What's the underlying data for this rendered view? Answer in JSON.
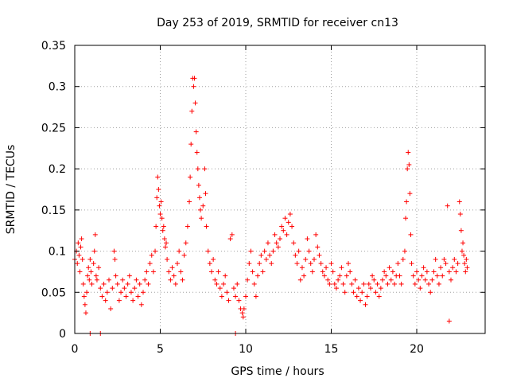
{
  "chart_data": {
    "type": "scatter",
    "title": "Day 253 of 2019, SRMTID for receiver cn13",
    "xlabel": "GPS time / hours",
    "ylabel": "SRMTID / TECUs",
    "xlim": [
      0,
      24
    ],
    "ylim": [
      0,
      0.35
    ],
    "xticks": [
      0,
      5,
      10,
      15,
      20
    ],
    "xtick_labels": [
      "0",
      "5",
      "10",
      "15",
      "20"
    ],
    "yticks": [
      0,
      0.05,
      0.1,
      0.15,
      0.2,
      0.25,
      0.3,
      0.35
    ],
    "ytick_labels": [
      "0",
      "0.05",
      "0.1",
      "0.15",
      "0.2",
      "0.25",
      "0.3",
      "0.35"
    ],
    "grid": true,
    "marker": "+",
    "series_color": "#ff0000",
    "series": [
      {
        "name": "SRMTID",
        "points": [
          [
            0.0,
            0.09
          ],
          [
            0.1,
            0.1
          ],
          [
            0.15,
            0.085
          ],
          [
            0.2,
            0.11
          ],
          [
            0.25,
            0.095
          ],
          [
            0.3,
            0.075
          ],
          [
            0.35,
            0.105
          ],
          [
            0.4,
            0.115
          ],
          [
            0.45,
            0.09
          ],
          [
            0.5,
            0.06
          ],
          [
            0.55,
            0.045
          ],
          [
            0.6,
            0.035
          ],
          [
            0.65,
            0.025
          ],
          [
            0.7,
            0.05
          ],
          [
            0.75,
            0.07
          ],
          [
            0.8,
            0.08
          ],
          [
            0.85,
            0.065
          ],
          [
            0.9,
            0.09
          ],
          [
            0.95,
            0.075
          ],
          [
            1.0,
            0.06
          ],
          [
            1.1,
            0.085
          ],
          [
            1.15,
            0.1
          ],
          [
            1.2,
            0.12
          ],
          [
            1.25,
            0.07
          ],
          [
            1.3,
            0.065
          ],
          [
            1.4,
            0.08
          ],
          [
            1.5,
            0.055
          ],
          [
            1.6,
            0.045
          ],
          [
            1.7,
            0.06
          ],
          [
            1.8,
            0.04
          ],
          [
            1.9,
            0.05
          ],
          [
            2.0,
            0.065
          ],
          [
            2.1,
            0.03
          ],
          [
            2.2,
            0.055
          ],
          [
            2.3,
            0.1
          ],
          [
            2.35,
            0.09
          ],
          [
            2.4,
            0.07
          ],
          [
            2.5,
            0.06
          ],
          [
            2.6,
            0.04
          ],
          [
            2.7,
            0.05
          ],
          [
            2.8,
            0.065
          ],
          [
            2.9,
            0.055
          ],
          [
            3.0,
            0.045
          ],
          [
            3.1,
            0.06
          ],
          [
            3.2,
            0.07
          ],
          [
            3.3,
            0.05
          ],
          [
            3.4,
            0.04
          ],
          [
            3.5,
            0.055
          ],
          [
            3.6,
            0.065
          ],
          [
            3.7,
            0.045
          ],
          [
            3.8,
            0.06
          ],
          [
            3.9,
            0.035
          ],
          [
            4.0,
            0.05
          ],
          [
            4.1,
            0.065
          ],
          [
            4.2,
            0.075
          ],
          [
            4.3,
            0.06
          ],
          [
            4.4,
            0.085
          ],
          [
            4.5,
            0.095
          ],
          [
            4.6,
            0.075
          ],
          [
            4.7,
            0.1
          ],
          [
            4.75,
            0.13
          ],
          [
            4.8,
            0.165
          ],
          [
            4.85,
            0.19
          ],
          [
            4.9,
            0.175
          ],
          [
            4.95,
            0.155
          ],
          [
            5.0,
            0.145
          ],
          [
            5.05,
            0.16
          ],
          [
            5.1,
            0.14
          ],
          [
            5.15,
            0.125
          ],
          [
            5.2,
            0.13
          ],
          [
            5.25,
            0.115
          ],
          [
            5.3,
            0.105
          ],
          [
            5.35,
            0.11
          ],
          [
            5.4,
            0.09
          ],
          [
            5.5,
            0.075
          ],
          [
            5.6,
            0.065
          ],
          [
            5.7,
            0.08
          ],
          [
            5.8,
            0.07
          ],
          [
            5.9,
            0.06
          ],
          [
            6.0,
            0.085
          ],
          [
            6.1,
            0.1
          ],
          [
            6.2,
            0.075
          ],
          [
            6.3,
            0.065
          ],
          [
            6.4,
            0.095
          ],
          [
            6.5,
            0.11
          ],
          [
            6.6,
            0.13
          ],
          [
            6.7,
            0.16
          ],
          [
            6.75,
            0.19
          ],
          [
            6.8,
            0.23
          ],
          [
            6.85,
            0.27
          ],
          [
            6.9,
            0.31
          ],
          [
            6.95,
            0.3
          ],
          [
            7.0,
            0.31
          ],
          [
            7.05,
            0.28
          ],
          [
            7.1,
            0.245
          ],
          [
            7.15,
            0.22
          ],
          [
            7.2,
            0.2
          ],
          [
            7.25,
            0.18
          ],
          [
            7.3,
            0.165
          ],
          [
            7.35,
            0.15
          ],
          [
            7.4,
            0.14
          ],
          [
            7.5,
            0.155
          ],
          [
            7.6,
            0.2
          ],
          [
            7.65,
            0.17
          ],
          [
            7.7,
            0.13
          ],
          [
            7.8,
            0.1
          ],
          [
            7.9,
            0.085
          ],
          [
            8.0,
            0.075
          ],
          [
            8.1,
            0.09
          ],
          [
            8.2,
            0.065
          ],
          [
            8.3,
            0.06
          ],
          [
            8.4,
            0.075
          ],
          [
            8.5,
            0.055
          ],
          [
            8.6,
            0.045
          ],
          [
            8.7,
            0.06
          ],
          [
            8.8,
            0.07
          ],
          [
            8.9,
            0.05
          ],
          [
            9.0,
            0.04
          ],
          [
            9.1,
            0.115
          ],
          [
            9.2,
            0.12
          ],
          [
            9.3,
            0.055
          ],
          [
            9.4,
            0.045
          ],
          [
            9.5,
            0.06
          ],
          [
            9.6,
            0.04
          ],
          [
            9.7,
            0.03
          ],
          [
            9.8,
            0.025
          ],
          [
            9.85,
            0.02
          ],
          [
            9.9,
            0.03
          ],
          [
            10.0,
            0.045
          ],
          [
            10.1,
            0.065
          ],
          [
            10.2,
            0.085
          ],
          [
            10.3,
            0.1
          ],
          [
            10.4,
            0.075
          ],
          [
            10.5,
            0.06
          ],
          [
            10.6,
            0.045
          ],
          [
            10.7,
            0.07
          ],
          [
            10.8,
            0.085
          ],
          [
            10.9,
            0.095
          ],
          [
            11.0,
            0.075
          ],
          [
            11.1,
            0.1
          ],
          [
            11.2,
            0.09
          ],
          [
            11.3,
            0.11
          ],
          [
            11.4,
            0.095
          ],
          [
            11.5,
            0.085
          ],
          [
            11.6,
            0.1
          ],
          [
            11.7,
            0.12
          ],
          [
            11.8,
            0.11
          ],
          [
            11.9,
            0.105
          ],
          [
            12.0,
            0.115
          ],
          [
            12.1,
            0.13
          ],
          [
            12.2,
            0.125
          ],
          [
            12.3,
            0.14
          ],
          [
            12.4,
            0.12
          ],
          [
            12.5,
            0.135
          ],
          [
            12.6,
            0.145
          ],
          [
            12.7,
            0.13
          ],
          [
            12.8,
            0.11
          ],
          [
            12.9,
            0.095
          ],
          [
            13.0,
            0.085
          ],
          [
            13.1,
            0.1
          ],
          [
            13.2,
            0.065
          ],
          [
            13.3,
            0.08
          ],
          [
            13.4,
            0.07
          ],
          [
            13.5,
            0.09
          ],
          [
            13.6,
            0.115
          ],
          [
            13.7,
            0.1
          ],
          [
            13.8,
            0.085
          ],
          [
            13.9,
            0.075
          ],
          [
            14.0,
            0.09
          ],
          [
            14.1,
            0.12
          ],
          [
            14.2,
            0.105
          ],
          [
            14.3,
            0.095
          ],
          [
            14.4,
            0.085
          ],
          [
            14.5,
            0.075
          ],
          [
            14.6,
            0.07
          ],
          [
            14.7,
            0.08
          ],
          [
            14.8,
            0.065
          ],
          [
            14.9,
            0.06
          ],
          [
            15.0,
            0.085
          ],
          [
            15.1,
            0.075
          ],
          [
            15.2,
            0.06
          ],
          [
            15.3,
            0.055
          ],
          [
            15.4,
            0.065
          ],
          [
            15.5,
            0.07
          ],
          [
            15.6,
            0.08
          ],
          [
            15.7,
            0.06
          ],
          [
            15.8,
            0.05
          ],
          [
            15.9,
            0.07
          ],
          [
            16.0,
            0.085
          ],
          [
            16.1,
            0.075
          ],
          [
            16.2,
            0.06
          ],
          [
            16.3,
            0.05
          ],
          [
            16.4,
            0.065
          ],
          [
            16.5,
            0.045
          ],
          [
            16.6,
            0.055
          ],
          [
            16.7,
            0.04
          ],
          [
            16.8,
            0.05
          ],
          [
            16.9,
            0.06
          ],
          [
            17.0,
            0.035
          ],
          [
            17.1,
            0.045
          ],
          [
            17.2,
            0.06
          ],
          [
            17.3,
            0.055
          ],
          [
            17.4,
            0.07
          ],
          [
            17.5,
            0.065
          ],
          [
            17.6,
            0.05
          ],
          [
            17.7,
            0.06
          ],
          [
            17.8,
            0.045
          ],
          [
            17.9,
            0.055
          ],
          [
            18.0,
            0.065
          ],
          [
            18.1,
            0.075
          ],
          [
            18.2,
            0.07
          ],
          [
            18.3,
            0.06
          ],
          [
            18.4,
            0.08
          ],
          [
            18.5,
            0.065
          ],
          [
            18.6,
            0.075
          ],
          [
            18.7,
            0.06
          ],
          [
            18.8,
            0.07
          ],
          [
            18.9,
            0.085
          ],
          [
            19.0,
            0.07
          ],
          [
            19.1,
            0.06
          ],
          [
            19.2,
            0.09
          ],
          [
            19.3,
            0.1
          ],
          [
            19.35,
            0.14
          ],
          [
            19.4,
            0.16
          ],
          [
            19.45,
            0.2
          ],
          [
            19.5,
            0.22
          ],
          [
            19.55,
            0.205
          ],
          [
            19.6,
            0.17
          ],
          [
            19.65,
            0.12
          ],
          [
            19.7,
            0.085
          ],
          [
            19.8,
            0.07
          ],
          [
            19.9,
            0.06
          ],
          [
            20.0,
            0.075
          ],
          [
            20.1,
            0.065
          ],
          [
            20.2,
            0.055
          ],
          [
            20.3,
            0.07
          ],
          [
            20.4,
            0.08
          ],
          [
            20.5,
            0.065
          ],
          [
            20.6,
            0.075
          ],
          [
            20.7,
            0.06
          ],
          [
            20.8,
            0.05
          ],
          [
            20.9,
            0.065
          ],
          [
            21.0,
            0.075
          ],
          [
            21.1,
            0.09
          ],
          [
            21.2,
            0.07
          ],
          [
            21.3,
            0.06
          ],
          [
            21.4,
            0.08
          ],
          [
            21.5,
            0.07
          ],
          [
            21.6,
            0.09
          ],
          [
            21.7,
            0.085
          ],
          [
            21.8,
            0.155
          ],
          [
            21.9,
            0.075
          ],
          [
            22.0,
            0.065
          ],
          [
            22.1,
            0.08
          ],
          [
            22.2,
            0.09
          ],
          [
            22.3,
            0.075
          ],
          [
            22.4,
            0.085
          ],
          [
            22.5,
            0.16
          ],
          [
            22.55,
            0.145
          ],
          [
            22.6,
            0.125
          ],
          [
            22.65,
            0.1
          ],
          [
            22.7,
            0.11
          ],
          [
            22.75,
            0.095
          ],
          [
            22.8,
            0.085
          ],
          [
            22.85,
            0.075
          ],
          [
            22.9,
            0.09
          ],
          [
            22.95,
            0.08
          ],
          [
            21.9,
            0.015
          ],
          [
            0.9,
            0.0
          ],
          [
            1.5,
            0.0
          ],
          [
            9.4,
            0.0
          ]
        ]
      }
    ]
  }
}
